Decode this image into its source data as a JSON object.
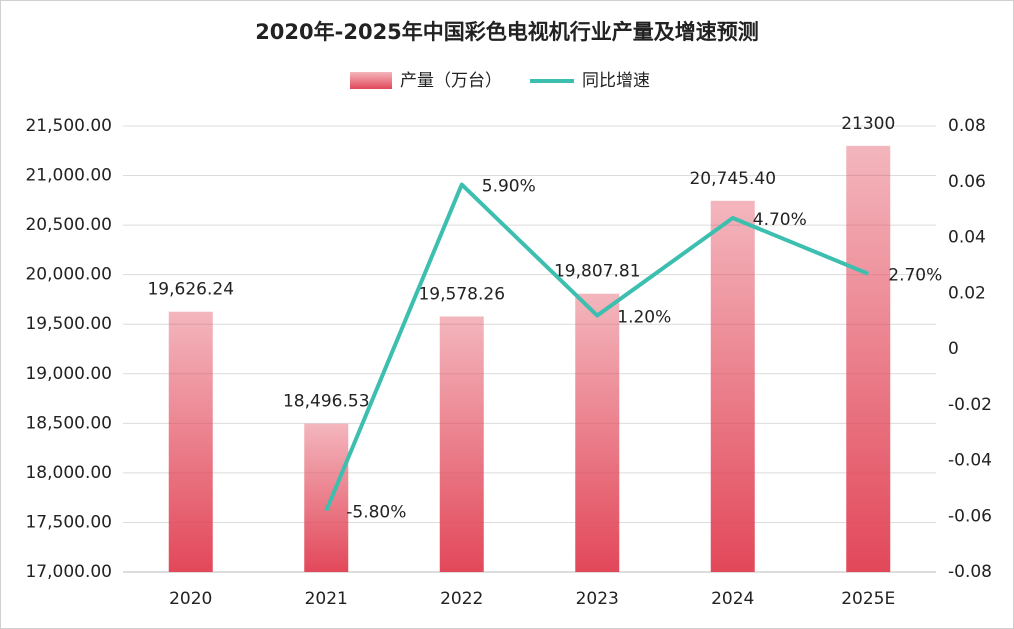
{
  "chart_data": {
    "type": "bar-line",
    "title": "2020年-2025年中国彩色电视机行业产量及增速预测",
    "categories": [
      "2020",
      "2021",
      "2022",
      "2023",
      "2024",
      "2025E"
    ],
    "series": [
      {
        "name": "产量（万台）",
        "type": "bar",
        "color": "#e2485a",
        "values": [
          19626.24,
          18496.53,
          19578.26,
          19807.81,
          20745.4,
          21300
        ],
        "value_labels": [
          "19,626.24",
          "18,496.53",
          "19,578.26",
          "19,807.81",
          "20,745.40",
          "21300"
        ]
      },
      {
        "name": "同比增速",
        "type": "line",
        "axis": "y2",
        "color": "#3dbfb0",
        "values": [
          null,
          -0.058,
          0.059,
          0.012,
          0.047,
          0.027
        ],
        "value_labels": [
          null,
          "-5.80%",
          "5.90%",
          "1.20%",
          "4.70%",
          "2.70%"
        ]
      }
    ],
    "ylim": [
      17000,
      21500
    ],
    "yticks": [
      {
        "value": 17000,
        "label": "17,000.00"
      },
      {
        "value": 17500,
        "label": "17,500.00"
      },
      {
        "value": 18000,
        "label": "18,000.00"
      },
      {
        "value": 18500,
        "label": "18,500.00"
      },
      {
        "value": 19000,
        "label": "19,000.00"
      },
      {
        "value": 19500,
        "label": "19,500.00"
      },
      {
        "value": 20000,
        "label": "20,000.00"
      },
      {
        "value": 20500,
        "label": "20,500.00"
      },
      {
        "value": 21000,
        "label": "21,000.00"
      },
      {
        "value": 21500,
        "label": "21,500.00"
      }
    ],
    "y2lim": [
      -0.08,
      0.08
    ],
    "y2ticks": [
      -0.08,
      -0.06,
      -0.04,
      -0.02,
      0,
      0.02,
      0.04,
      0.06,
      0.08
    ],
    "grid": true,
    "legend": "top"
  }
}
